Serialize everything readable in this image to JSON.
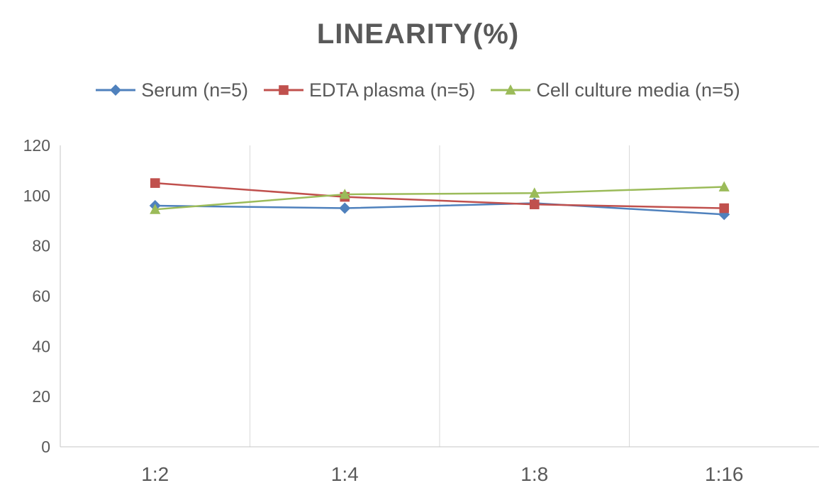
{
  "chart_data": {
    "type": "line",
    "title": "LINEARITY(%)",
    "categories": [
      "1:2",
      "1:4",
      "1:8",
      "1:16"
    ],
    "series": [
      {
        "name": "Serum (n=5)",
        "color": "#4F81BD",
        "marker": "diamond",
        "values": [
          96,
          95,
          97,
          92.5
        ]
      },
      {
        "name": "EDTA plasma (n=5)",
        "color": "#C0504D",
        "marker": "square",
        "values": [
          105,
          99.5,
          96.5,
          95
        ]
      },
      {
        "name": "Cell culture media (n=5)",
        "color": "#9BBB59",
        "marker": "triangle",
        "values": [
          94.5,
          100.5,
          101,
          103.5
        ]
      }
    ],
    "ylim": [
      0,
      120
    ],
    "yticks": [
      0,
      20,
      40,
      60,
      80,
      100,
      120
    ],
    "xlabel": "",
    "ylabel": "",
    "grid": "vertical-only",
    "legend_position": "top",
    "colors": {
      "title_text": "#595959",
      "tick_text": "#595959",
      "axis": "#C6C6C6",
      "grid": "#D9D9D9",
      "background": "#FFFFFF"
    }
  }
}
